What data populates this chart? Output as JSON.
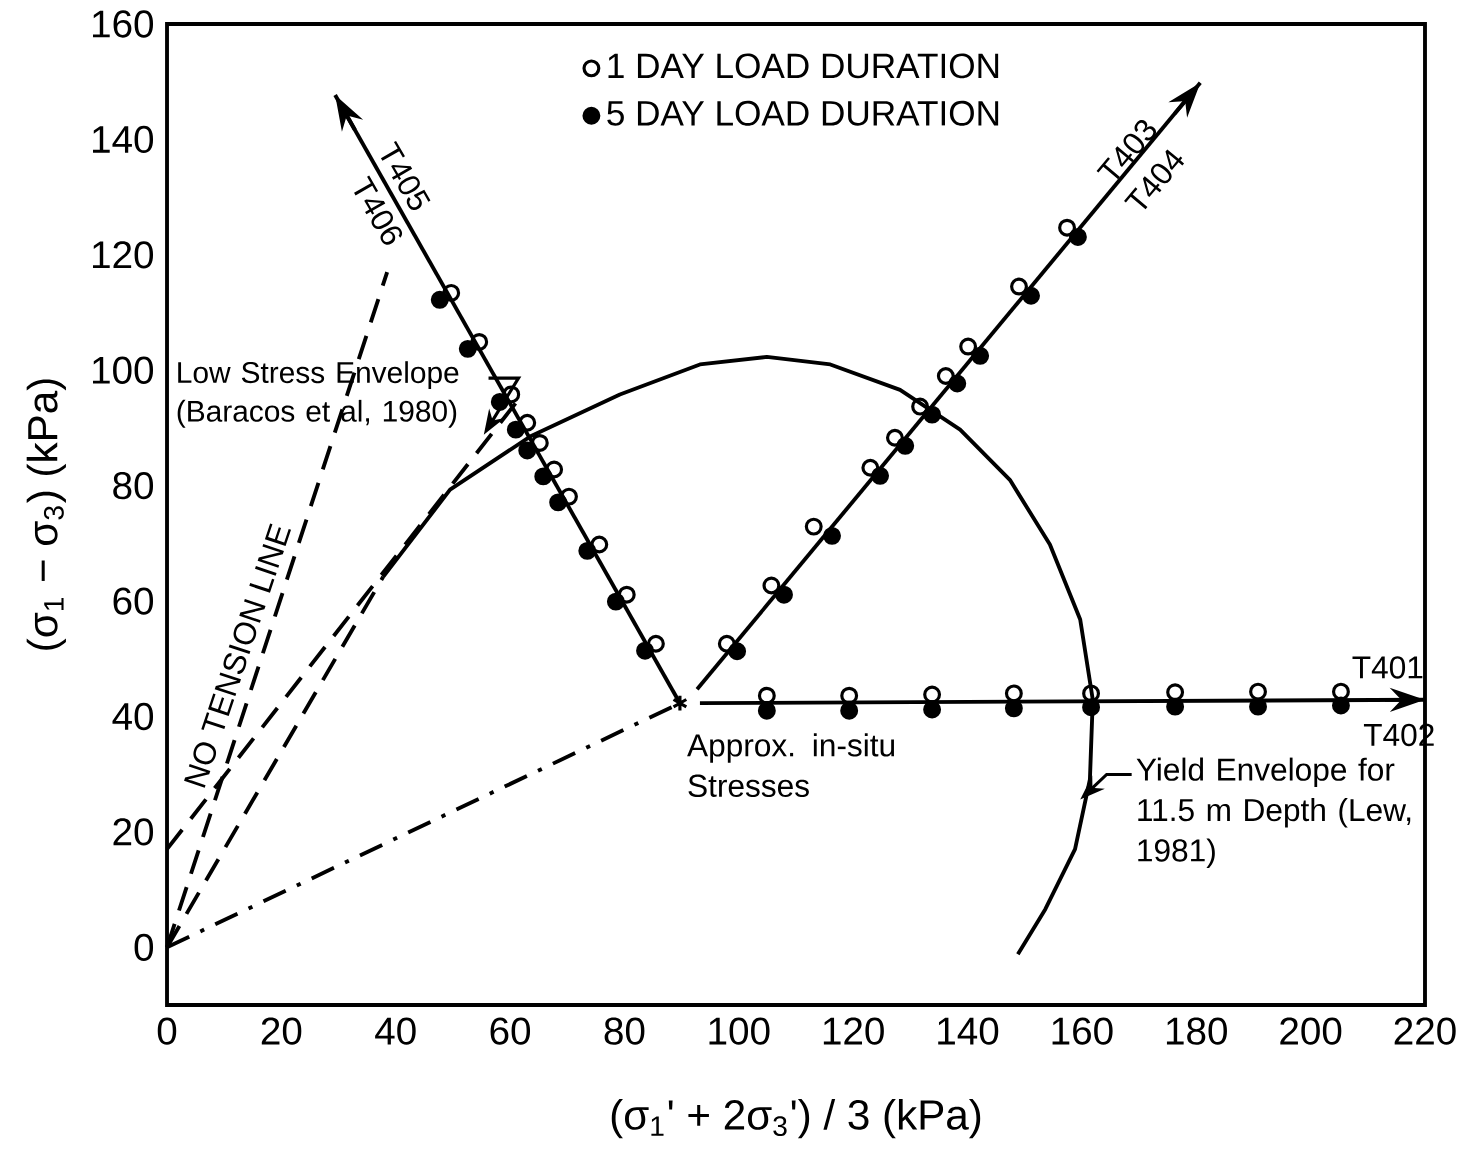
{
  "chart_data": {
    "type": "line",
    "xlabel": "(σ$_{1}$' + 2σ$_{3}$') / 3 (kPa)",
    "ylabel": "(σ$_{1}$ − σ$_{3}$) (kPa)",
    "xlim": [
      0,
      220
    ],
    "ylim": [
      -10,
      160
    ],
    "xticks": [
      0,
      20,
      40,
      60,
      80,
      100,
      120,
      140,
      160,
      180,
      200,
      220
    ],
    "yticks": [
      0,
      20,
      40,
      60,
      80,
      100,
      120,
      140,
      160
    ],
    "grid": false,
    "legend": "top",
    "series": [
      {
        "name": "1 DAY LOAD DURATION",
        "type": "scatter",
        "marker": "circle_open",
        "color": "#000000",
        "x": [
          85.5,
          80.4,
          75.6,
          70.3,
          67.7,
          65.2,
          63.0,
          60.2,
          54.6,
          49.7,
          97.9,
          105.7,
          113.1,
          123.0,
          127.3,
          131.7,
          136.2,
          140.1,
          149.0,
          157.4,
          104.9,
          119.3,
          133.8,
          148.1,
          161.6,
          176.3,
          190.8,
          205.3
        ],
        "values": [
          52.6,
          61.1,
          69.8,
          78.1,
          82.8,
          87.4,
          90.9,
          95.8,
          104.9,
          113.4,
          52.6,
          62.7,
          72.9,
          83.1,
          88.3,
          93.7,
          99.0,
          104.1,
          114.5,
          124.7,
          43.6,
          43.6,
          43.8,
          44.0,
          44.0,
          44.2,
          44.3,
          44.3
        ]
      },
      {
        "name": "5 DAY LOAD DURATION",
        "type": "scatter",
        "marker": "circle",
        "color": "#000000",
        "x": [
          83.6,
          78.5,
          73.5,
          68.4,
          65.8,
          63.0,
          61.0,
          58.2,
          52.6,
          47.7,
          99.7,
          107.9,
          116.3,
          124.7,
          129.1,
          133.8,
          138.2,
          142.2,
          151.1,
          159.3,
          104.9,
          119.3,
          133.8,
          148.1,
          161.6,
          176.3,
          190.8,
          205.3
        ],
        "values": [
          51.4,
          59.9,
          68.7,
          77.1,
          81.6,
          86.1,
          89.7,
          94.5,
          103.7,
          112.2,
          51.3,
          61.1,
          71.3,
          81.7,
          86.9,
          92.3,
          97.7,
          102.5,
          112.9,
          123.1,
          41.0,
          41.0,
          41.2,
          41.4,
          41.6,
          41.7,
          41.7,
          41.9
        ]
      },
      {
        "type": "scatter",
        "marker": "cross",
        "color": "#000000",
        "x": [
          89.7
        ],
        "values": [
          42.3
        ]
      },
      {
        "line_style": "solid",
        "color": "#000000",
        "x": [
          89.7,
          29.4
        ],
        "values": [
          42.3,
          147.7
        ]
      },
      {
        "line_style": "solid",
        "color": "#000000",
        "x": [
          92.7,
          180.7
        ],
        "values": [
          44.7,
          149.8
        ]
      },
      {
        "line_style": "solid",
        "color": "#000000",
        "x": [
          93.2,
          220
        ],
        "values": [
          42.3,
          42.9
        ]
      },
      {
        "line_style": "solid",
        "color": "#000000",
        "x": [
          37.8,
          49.5,
          63.5,
          79.2,
          93.2,
          104.9,
          116.0,
          128.2,
          138.7,
          147.4,
          154.4,
          159.7,
          161.9,
          161.4,
          158.8,
          153.6,
          148.8
        ],
        "values": [
          64.2,
          79.3,
          88.5,
          95.8,
          101.0,
          102.3,
          101.0,
          96.6,
          89.7,
          81.0,
          69.8,
          56.8,
          42.9,
          29.1,
          17.0,
          6.6,
          -1.2
        ]
      },
      {
        "line_style": "dashed",
        "color": "#000000",
        "x": [
          0,
          37.8
        ],
        "values": [
          0,
          64.2
        ]
      },
      {
        "line_style": "dashed",
        "color": "#000000",
        "x": [
          0,
          62.4
        ],
        "values": [
          17.0,
          96.1
        ]
      },
      {
        "line_style": "dashed",
        "color": "#000000",
        "x": [
          0,
          38.5
        ],
        "values": [
          0,
          117
        ]
      },
      {
        "line_style": "dashdot",
        "color": "#000000",
        "x": [
          0,
          89.7
        ],
        "values": [
          0,
          42.3
        ]
      }
    ],
    "annotations": [
      "T405",
      "T406",
      "T403",
      "T404",
      "T401",
      "T402",
      "NO TENSION LINE",
      {
        "text": "Low Stress Envelope (Baracos et al, 1980)",
        "x": 55.4,
        "y": 88.8
      },
      {
        "text": "Approx. in-situ Stresses",
        "x": 89.7,
        "y": 42.3
      },
      {
        "text": "Yield Envelope for 11.5 m Depth (Lew, 1981)",
        "x": 159.7,
        "y": 25.6
      }
    ]
  }
}
